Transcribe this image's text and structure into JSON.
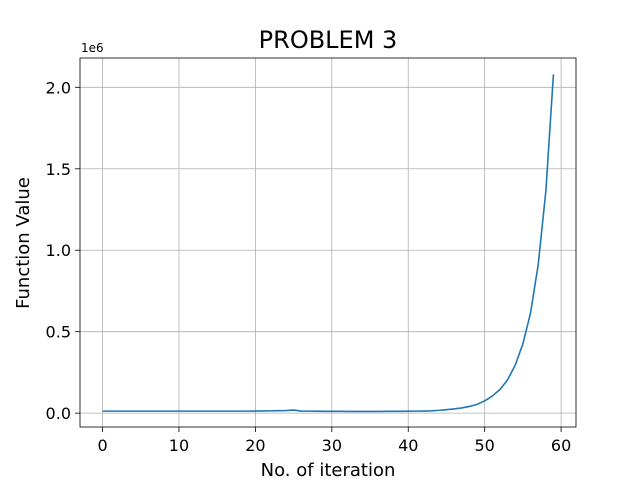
{
  "chart_data": {
    "type": "line",
    "title": "PROBLEM 3",
    "xlabel": "No. of iteration",
    "ylabel": "Function Value",
    "y_offset_label": "1e6",
    "grid": true,
    "xlim": [
      -2.95,
      61.95
    ],
    "ylim": [
      -0.085,
      2.18
    ],
    "x_ticks": [
      0,
      10,
      20,
      30,
      40,
      50,
      60
    ],
    "x_tick_labels": [
      "0",
      "10",
      "20",
      "30",
      "40",
      "50",
      "60"
    ],
    "y_ticks": [
      0.0,
      0.5,
      1.0,
      1.5,
      2.0
    ],
    "y_tick_labels": [
      "0.0",
      "0.5",
      "1.0",
      "1.5",
      "2.0"
    ],
    "series": [
      {
        "color": "#1f77b4",
        "x": [
          0,
          1,
          2,
          3,
          4,
          5,
          6,
          7,
          8,
          9,
          10,
          11,
          12,
          13,
          14,
          15,
          16,
          17,
          18,
          19,
          20,
          21,
          22,
          23,
          24,
          25,
          26,
          27,
          28,
          29,
          30,
          31,
          32,
          33,
          34,
          35,
          36,
          37,
          38,
          39,
          40,
          41,
          42,
          43,
          44,
          45,
          46,
          47,
          48,
          49,
          50,
          51,
          52,
          53,
          54,
          55,
          56,
          57,
          58,
          59
        ],
        "y": [
          0.0125,
          0.0125,
          0.0125,
          0.0125,
          0.0125,
          0.0125,
          0.0125,
          0.0125,
          0.0125,
          0.0125,
          0.0125,
          0.0125,
          0.0125,
          0.0125,
          0.0125,
          0.0125,
          0.0125,
          0.0125,
          0.0125,
          0.0125,
          0.013,
          0.0135,
          0.014,
          0.015,
          0.016,
          0.019,
          0.013,
          0.0125,
          0.012,
          0.0115,
          0.011,
          0.011,
          0.0105,
          0.0105,
          0.0105,
          0.0105,
          0.0105,
          0.011,
          0.011,
          0.0115,
          0.012,
          0.0125,
          0.013,
          0.0145,
          0.017,
          0.021,
          0.026,
          0.032,
          0.041,
          0.054,
          0.075,
          0.105,
          0.145,
          0.205,
          0.295,
          0.425,
          0.615,
          0.91,
          1.36,
          2.08
        ]
      }
    ]
  }
}
